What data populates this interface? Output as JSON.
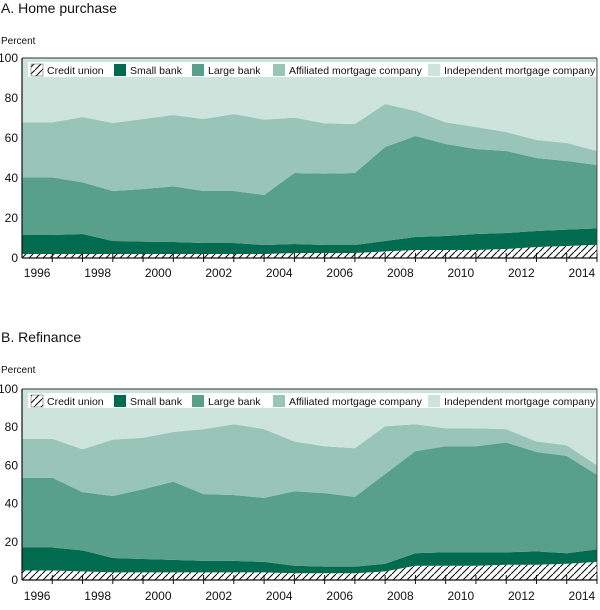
{
  "colors": {
    "credit_union": "#ffffff",
    "small_bank": "#006b4e",
    "large_bank": "#58a089",
    "affiliated": "#98c5b8",
    "independent": "#cde4dd",
    "hatch": "#111111"
  },
  "chart_data": [
    {
      "type": "area",
      "stacked": true,
      "title": "A. Home purchase",
      "ylabel": "Percent",
      "ylim": [
        0,
        100
      ],
      "yticks": [
        0,
        20,
        40,
        60,
        80,
        100
      ],
      "x": [
        1996,
        1997,
        1998,
        1999,
        2000,
        2001,
        2002,
        2003,
        2004,
        2005,
        2006,
        2007,
        2008,
        2009,
        2010,
        2011,
        2012,
        2013,
        2014
      ],
      "xtick_labels": [
        "1996",
        "1998",
        "2000",
        "2002",
        "2004",
        "2006",
        "2008",
        "2010",
        "2012",
        "2014"
      ],
      "legend_position": "top",
      "series": [
        {
          "name": "Credit union",
          "key": "credit_union",
          "values": [
            2,
            2,
            2,
            2,
            2,
            2,
            2,
            2,
            2.5,
            2.5,
            2.5,
            3.3,
            4,
            4,
            4,
            4.5,
            5.5,
            6,
            6.6
          ]
        },
        {
          "name": "Small bank",
          "key": "small_bank",
          "values": [
            9.5,
            10,
            6.5,
            6.2,
            6,
            5.5,
            5.5,
            4.5,
            4.5,
            4,
            4,
            5.2,
            6.5,
            7,
            8,
            8,
            8,
            8.2,
            8.2
          ]
        },
        {
          "name": "Large bank",
          "key": "large_bank",
          "values": [
            28.8,
            25.8,
            25,
            26.3,
            27.8,
            26,
            26,
            25,
            35.5,
            35.7,
            36,
            47,
            50.5,
            46,
            42.5,
            41,
            36.5,
            34.3,
            31.7
          ]
        },
        {
          "name": "Affiliated mortgage company",
          "key": "affiliated",
          "values": [
            27.5,
            32.7,
            34,
            35,
            35.7,
            36,
            38.5,
            37.7,
            27.7,
            25.1,
            24.5,
            21.5,
            12.5,
            10.8,
            11,
            9.5,
            9,
            9,
            7
          ]
        },
        {
          "name": "Independent mortgage company",
          "key": "independent",
          "values": [
            32.2,
            29.5,
            32.5,
            30.5,
            28.5,
            30.5,
            28,
            30.8,
            29.8,
            32.7,
            33,
            23,
            26.5,
            32.2,
            34.5,
            37,
            41,
            42.5,
            46.5
          ]
        }
      ]
    },
    {
      "type": "area",
      "stacked": true,
      "title": "B. Refinance",
      "ylabel": "Percent",
      "ylim": [
        0,
        100
      ],
      "yticks": [
        0,
        20,
        40,
        60,
        80,
        100
      ],
      "x": [
        1996,
        1997,
        1998,
        1999,
        2000,
        2001,
        2002,
        2003,
        2004,
        2005,
        2006,
        2007,
        2008,
        2009,
        2010,
        2011,
        2012,
        2013,
        2014
      ],
      "xtick_labels": [
        "1996",
        "1998",
        "2000",
        "2002",
        "2004",
        "2006",
        "2008",
        "2010",
        "2012",
        "2014"
      ],
      "legend_position": "top",
      "series": [
        {
          "name": "Credit union",
          "key": "credit_union",
          "values": [
            5,
            4.5,
            4,
            4,
            4,
            4,
            4,
            4,
            3.5,
            3.5,
            3.5,
            4.5,
            7.5,
            7.5,
            7.5,
            8,
            8,
            8.5,
            9.5
          ]
        },
        {
          "name": "Small bank",
          "key": "small_bank",
          "values": [
            12,
            11,
            7.5,
            7,
            6.5,
            6,
            6,
            5.5,
            4,
            3.5,
            3.5,
            4,
            6.5,
            7,
            7,
            6.5,
            7,
            5.5,
            6.5
          ]
        },
        {
          "name": "Large bank",
          "key": "large_bank",
          "values": [
            36.5,
            30.5,
            32.5,
            36.5,
            41,
            35,
            34.5,
            33.5,
            39,
            38.5,
            36.5,
            47,
            53.5,
            55.5,
            55.5,
            57.5,
            52,
            51,
            39
          ]
        },
        {
          "name": "Affiliated mortgage company",
          "key": "affiliated",
          "values": [
            20.5,
            22.5,
            29.5,
            27,
            26,
            34,
            37,
            36,
            26,
            24.5,
            25.5,
            25,
            14,
            9.5,
            9.5,
            7,
            5.5,
            5.5,
            5
          ]
        },
        {
          "name": "Independent mortgage company",
          "key": "independent",
          "values": [
            26,
            31.5,
            26.5,
            25.5,
            22.5,
            21,
            18.5,
            21,
            27.5,
            30,
            31,
            19.5,
            18.5,
            20.5,
            20.5,
            21,
            27.5,
            29.5,
            40
          ]
        }
      ]
    }
  ]
}
